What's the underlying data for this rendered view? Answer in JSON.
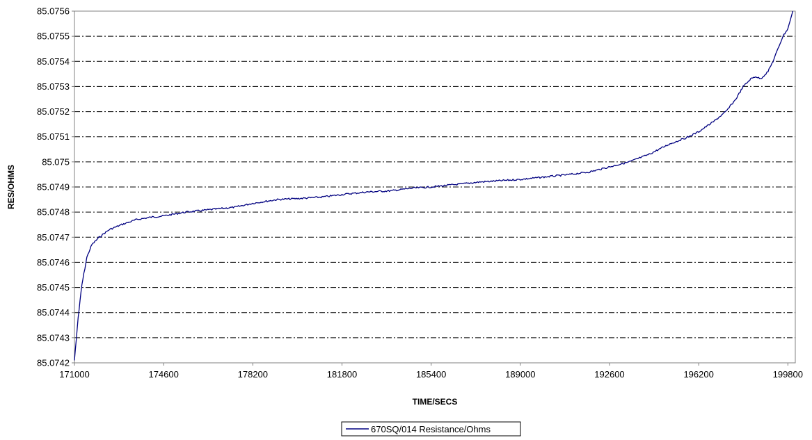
{
  "chart_data": {
    "type": "line",
    "title": "",
    "xlabel": "TIME/SECS",
    "ylabel": "RES/OHMS",
    "xlim": [
      171000,
      200100
    ],
    "ylim": [
      85.0742,
      85.0756
    ],
    "x_ticks": [
      "171000",
      "174600",
      "178200",
      "181800",
      "185400",
      "189000",
      "192600",
      "196200",
      "199800"
    ],
    "y_ticks": [
      "85.0742",
      "85.0743",
      "85.0744",
      "85.0745",
      "85.0746",
      "85.0747",
      "85.0748",
      "85.0749",
      "85.075",
      "85.0751",
      "85.0752",
      "85.0753",
      "85.0754",
      "85.0755",
      "85.0756"
    ],
    "grid": "horizontal dash-dot",
    "legend_position": "bottom-center",
    "series": [
      {
        "name": "670SQ/014 Resistance/Ohms",
        "color": "#000080",
        "x": [
          171000,
          171150,
          171300,
          171500,
          171700,
          172000,
          172400,
          172900,
          173500,
          174100,
          174600,
          175500,
          176500,
          177500,
          178200,
          179200,
          180200,
          181000,
          181800,
          182800,
          183800,
          184600,
          185400,
          186400,
          187400,
          188200,
          189000,
          190000,
          191000,
          191800,
          192600,
          193400,
          194200,
          195000,
          195800,
          196200,
          196800,
          197300,
          197700,
          198000,
          198300,
          198500,
          198700,
          199000,
          199200,
          199400,
          199600,
          199800,
          200000
        ],
        "y": [
          85.07421,
          85.07438,
          85.07451,
          85.07462,
          85.07467,
          85.0747,
          85.07473,
          85.07475,
          85.07477,
          85.07478,
          85.074785,
          85.0748,
          85.07481,
          85.07482,
          85.074835,
          85.07485,
          85.074855,
          85.07486,
          85.07487,
          85.07488,
          85.074885,
          85.074895,
          85.0749,
          85.07491,
          85.07492,
          85.074925,
          85.07493,
          85.07494,
          85.07495,
          85.07496,
          85.07498,
          85.075,
          85.07503,
          85.07507,
          85.0751,
          85.07512,
          85.07516,
          85.0752,
          85.07525,
          85.0753,
          85.07533,
          85.07534,
          85.07533,
          85.07536,
          85.0754,
          85.07545,
          85.0755,
          85.07553,
          85.0756
        ]
      }
    ]
  }
}
